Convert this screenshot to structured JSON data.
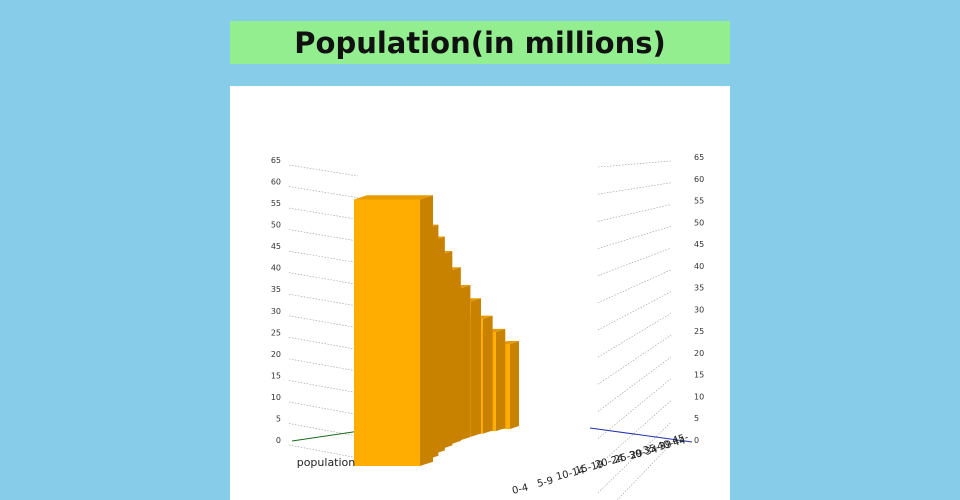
{
  "title": "Population(in millions)",
  "colors": {
    "page_bg": "#87cdea",
    "title_bg": "#92ee8e",
    "panel_bg": "#ffffff",
    "bar_front": "#ffad00",
    "bar_side": "#c98100",
    "bar_top": "#e69c00",
    "left_axis": "#1a6b1a",
    "right_axis": "#2233aa",
    "grid": "#9a9a9a"
  },
  "chart_data": {
    "type": "bar",
    "style": "3d-column",
    "categories": [
      "population"
    ],
    "series": [
      {
        "name": "0-4",
        "values": [
          65
        ]
      },
      {
        "name": "5-9",
        "values": [
          60
        ]
      },
      {
        "name": "10-14",
        "values": [
          59
        ]
      },
      {
        "name": "15-19",
        "values": [
          57
        ]
      },
      {
        "name": "20-24",
        "values": [
          54
        ]
      },
      {
        "name": "25-29",
        "values": [
          50
        ]
      },
      {
        "name": "30-34",
        "values": [
          47
        ]
      },
      {
        "name": "35-39",
        "values": [
          42
        ]
      },
      {
        "name": "40-44",
        "values": [
          38
        ]
      },
      {
        "name": "45-",
        "values": [
          34
        ]
      }
    ],
    "yticks": [
      0,
      5,
      10,
      15,
      20,
      25,
      30,
      35,
      40,
      45,
      50,
      55,
      60,
      65
    ],
    "ylim": [
      0,
      65
    ],
    "grid": true
  }
}
